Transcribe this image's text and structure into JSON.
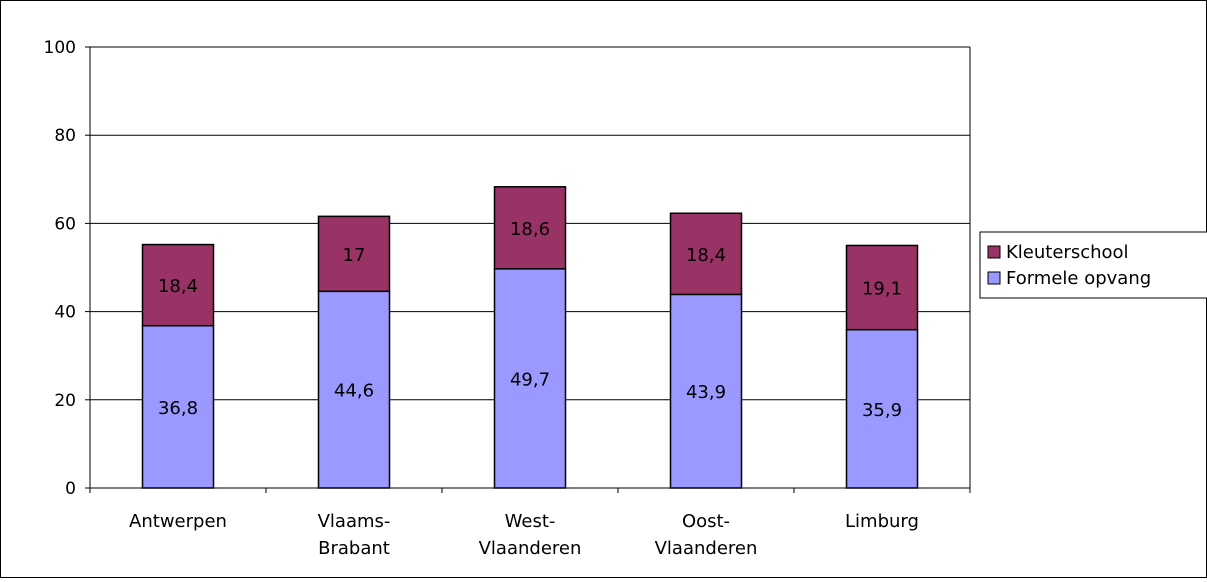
{
  "chart_data": {
    "type": "bar",
    "stacked": true,
    "categories": [
      [
        "Antwerpen"
      ],
      [
        "Vlaams-",
        "Brabant"
      ],
      [
        "West-",
        "Vlaanderen"
      ],
      [
        "Oost-",
        "Vlaanderen"
      ],
      [
        "Limburg"
      ]
    ],
    "series": [
      {
        "name": "Formele opvang",
        "color": "#9999ff",
        "values": [
          36.8,
          44.6,
          49.7,
          43.9,
          35.9
        ],
        "labels": [
          "36,8",
          "44,6",
          "49,7",
          "43,9",
          "35,9"
        ]
      },
      {
        "name": "Kleuterschool",
        "color": "#993366",
        "values": [
          18.4,
          17,
          18.6,
          18.4,
          19.1
        ],
        "labels": [
          "18,4",
          "17",
          "18,6",
          "18,4",
          "19,1"
        ]
      }
    ],
    "ylim": [
      0,
      100
    ],
    "yticks": [
      "0",
      "20",
      "40",
      "60",
      "80",
      "100"
    ],
    "grid": true,
    "legend_position": "right",
    "legend_order": [
      "Kleuterschool",
      "Formele opvang"
    ],
    "title": "",
    "xlabel": "",
    "ylabel": ""
  }
}
